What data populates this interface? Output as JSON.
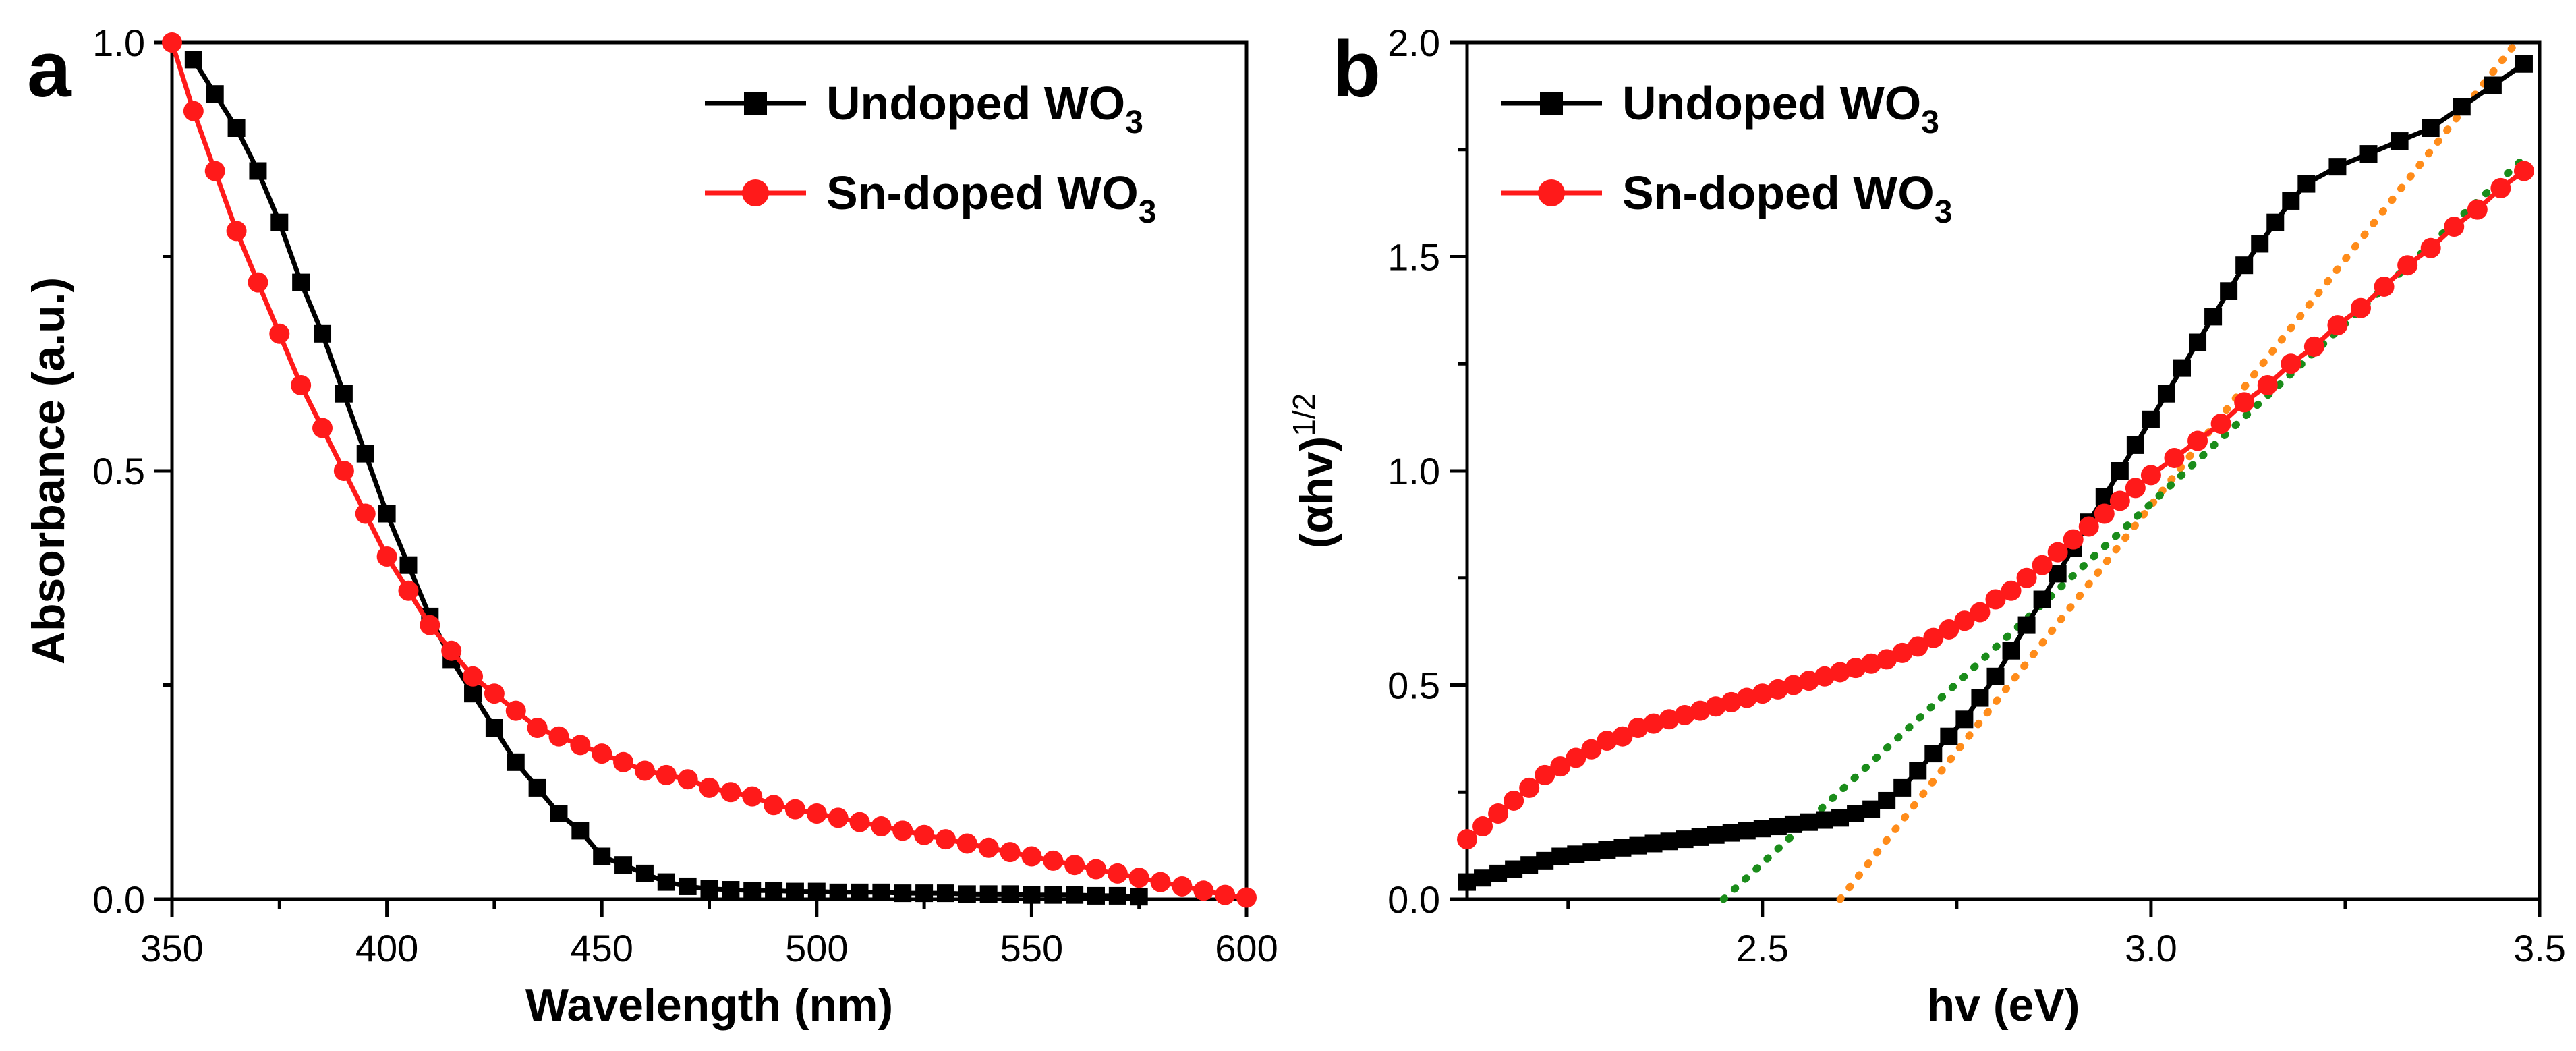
{
  "chart_data": [
    {
      "panel_label": "a",
      "type": "line",
      "xlabel": "Wavelength (nm)",
      "ylabel": "Absorbance (a.u.)",
      "xlim": [
        350,
        600
      ],
      "ylim": [
        0,
        1.0
      ],
      "xticks": [
        "350",
        "400",
        "450",
        "500",
        "550",
        "600"
      ],
      "yticks": [
        "0.0",
        "0.5",
        "1.0"
      ],
      "legend_position": "top-right",
      "series": [
        {
          "name": "Undoped WO3",
          "legend_main": "Undoped WO",
          "legend_sub": "3",
          "color": "#000000",
          "marker": "square",
          "x": [
            355,
            360,
            365,
            370,
            375,
            380,
            385,
            390,
            395,
            400,
            405,
            410,
            415,
            420,
            425,
            430,
            435,
            440,
            445,
            450,
            455,
            460,
            465,
            470,
            475,
            480,
            485,
            490,
            495,
            500,
            505,
            510,
            515,
            520,
            525,
            530,
            535,
            540,
            545,
            550,
            555,
            560,
            565,
            570,
            575
          ],
          "y": [
            0.98,
            0.94,
            0.9,
            0.85,
            0.79,
            0.72,
            0.66,
            0.59,
            0.52,
            0.45,
            0.39,
            0.33,
            0.28,
            0.24,
            0.2,
            0.16,
            0.13,
            0.1,
            0.08,
            0.05,
            0.04,
            0.03,
            0.02,
            0.015,
            0.012,
            0.011,
            0.01,
            0.01,
            0.009,
            0.009,
            0.008,
            0.008,
            0.008,
            0.007,
            0.007,
            0.007,
            0.006,
            0.006,
            0.006,
            0.005,
            0.005,
            0.005,
            0.004,
            0.004,
            0.003
          ]
        },
        {
          "name": "Sn-doped WO3",
          "legend_main": "Sn-doped WO",
          "legend_sub": "3",
          "color": "#ff1a1a",
          "marker": "circle",
          "x": [
            350,
            355,
            360,
            365,
            370,
            375,
            380,
            385,
            390,
            395,
            400,
            405,
            410,
            415,
            420,
            425,
            430,
            435,
            440,
            445,
            450,
            455,
            460,
            465,
            470,
            475,
            480,
            485,
            490,
            495,
            500,
            505,
            510,
            515,
            520,
            525,
            530,
            535,
            540,
            545,
            550,
            555,
            560,
            565,
            570,
            575,
            580,
            585,
            590,
            595,
            600
          ],
          "y": [
            1.0,
            0.92,
            0.85,
            0.78,
            0.72,
            0.66,
            0.6,
            0.55,
            0.5,
            0.45,
            0.4,
            0.36,
            0.32,
            0.29,
            0.26,
            0.24,
            0.22,
            0.2,
            0.19,
            0.18,
            0.17,
            0.16,
            0.15,
            0.145,
            0.14,
            0.13,
            0.125,
            0.12,
            0.11,
            0.105,
            0.1,
            0.095,
            0.09,
            0.085,
            0.08,
            0.075,
            0.07,
            0.065,
            0.06,
            0.055,
            0.05,
            0.045,
            0.04,
            0.035,
            0.03,
            0.025,
            0.02,
            0.015,
            0.01,
            0.005,
            0.002
          ]
        }
      ]
    },
    {
      "panel_label": "b",
      "type": "line",
      "xlabel": "hv (eV)",
      "ylabel_main": "(αhv)",
      "ylabel_sup": "1/2",
      "xlim": [
        2.12,
        3.5
      ],
      "ylim": [
        0,
        2.0
      ],
      "xticks": [
        "2.5",
        "3.0",
        "3.5"
      ],
      "yticks": [
        "0.0",
        "0.5",
        "1.0",
        "1.5",
        "2.0"
      ],
      "legend_position": "top-left",
      "series": [
        {
          "name": "Undoped WO3",
          "legend_main": "Undoped WO",
          "legend_sub": "3",
          "color": "#000000",
          "marker": "square",
          "x": [
            2.12,
            2.14,
            2.16,
            2.18,
            2.2,
            2.22,
            2.24,
            2.26,
            2.28,
            2.3,
            2.32,
            2.34,
            2.36,
            2.38,
            2.4,
            2.42,
            2.44,
            2.46,
            2.48,
            2.5,
            2.52,
            2.54,
            2.56,
            2.58,
            2.6,
            2.62,
            2.64,
            2.66,
            2.68,
            2.7,
            2.72,
            2.74,
            2.76,
            2.78,
            2.8,
            2.82,
            2.84,
            2.86,
            2.88,
            2.9,
            2.92,
            2.94,
            2.96,
            2.98,
            3.0,
            3.02,
            3.04,
            3.06,
            3.08,
            3.1,
            3.12,
            3.14,
            3.16,
            3.18,
            3.2,
            3.24,
            3.28,
            3.32,
            3.36,
            3.4,
            3.44,
            3.48
          ],
          "y": [
            0.04,
            0.05,
            0.06,
            0.07,
            0.08,
            0.09,
            0.1,
            0.105,
            0.11,
            0.115,
            0.12,
            0.125,
            0.13,
            0.135,
            0.14,
            0.145,
            0.15,
            0.155,
            0.16,
            0.165,
            0.17,
            0.175,
            0.18,
            0.185,
            0.19,
            0.2,
            0.21,
            0.23,
            0.26,
            0.3,
            0.34,
            0.38,
            0.42,
            0.47,
            0.52,
            0.58,
            0.64,
            0.7,
            0.76,
            0.82,
            0.88,
            0.94,
            1.0,
            1.06,
            1.12,
            1.18,
            1.24,
            1.3,
            1.36,
            1.42,
            1.48,
            1.53,
            1.58,
            1.63,
            1.67,
            1.71,
            1.74,
            1.77,
            1.8,
            1.85,
            1.9,
            1.95
          ]
        },
        {
          "name": "Sn-doped WO3",
          "legend_main": "Sn-doped WO",
          "legend_sub": "3",
          "color": "#ff1a1a",
          "marker": "circle",
          "x": [
            2.12,
            2.14,
            2.16,
            2.18,
            2.2,
            2.22,
            2.24,
            2.26,
            2.28,
            2.3,
            2.32,
            2.34,
            2.36,
            2.38,
            2.4,
            2.42,
            2.44,
            2.46,
            2.48,
            2.5,
            2.52,
            2.54,
            2.56,
            2.58,
            2.6,
            2.62,
            2.64,
            2.66,
            2.68,
            2.7,
            2.72,
            2.74,
            2.76,
            2.78,
            2.8,
            2.82,
            2.84,
            2.86,
            2.88,
            2.9,
            2.92,
            2.94,
            2.96,
            2.98,
            3.0,
            3.03,
            3.06,
            3.09,
            3.12,
            3.15,
            3.18,
            3.21,
            3.24,
            3.27,
            3.3,
            3.33,
            3.36,
            3.39,
            3.42,
            3.45,
            3.48
          ],
          "y": [
            0.14,
            0.17,
            0.2,
            0.23,
            0.26,
            0.29,
            0.31,
            0.33,
            0.35,
            0.37,
            0.38,
            0.4,
            0.41,
            0.42,
            0.43,
            0.44,
            0.45,
            0.46,
            0.47,
            0.48,
            0.49,
            0.5,
            0.51,
            0.52,
            0.53,
            0.54,
            0.55,
            0.56,
            0.575,
            0.59,
            0.61,
            0.63,
            0.65,
            0.67,
            0.7,
            0.72,
            0.75,
            0.78,
            0.81,
            0.84,
            0.87,
            0.9,
            0.93,
            0.96,
            0.99,
            1.03,
            1.07,
            1.11,
            1.16,
            1.2,
            1.25,
            1.29,
            1.34,
            1.38,
            1.43,
            1.48,
            1.52,
            1.57,
            1.61,
            1.66,
            1.7
          ]
        },
        {
          "name": "Undoped tangent",
          "color": "#ff8c1a",
          "style": "dotted",
          "x": [
            2.6,
            3.47
          ],
          "y": [
            0.0,
            2.0
          ]
        },
        {
          "name": "Sn-doped tangent",
          "color": "#1a8c1a",
          "style": "dotted",
          "x": [
            2.45,
            3.48
          ],
          "y": [
            0.0,
            1.73
          ]
        }
      ]
    }
  ]
}
